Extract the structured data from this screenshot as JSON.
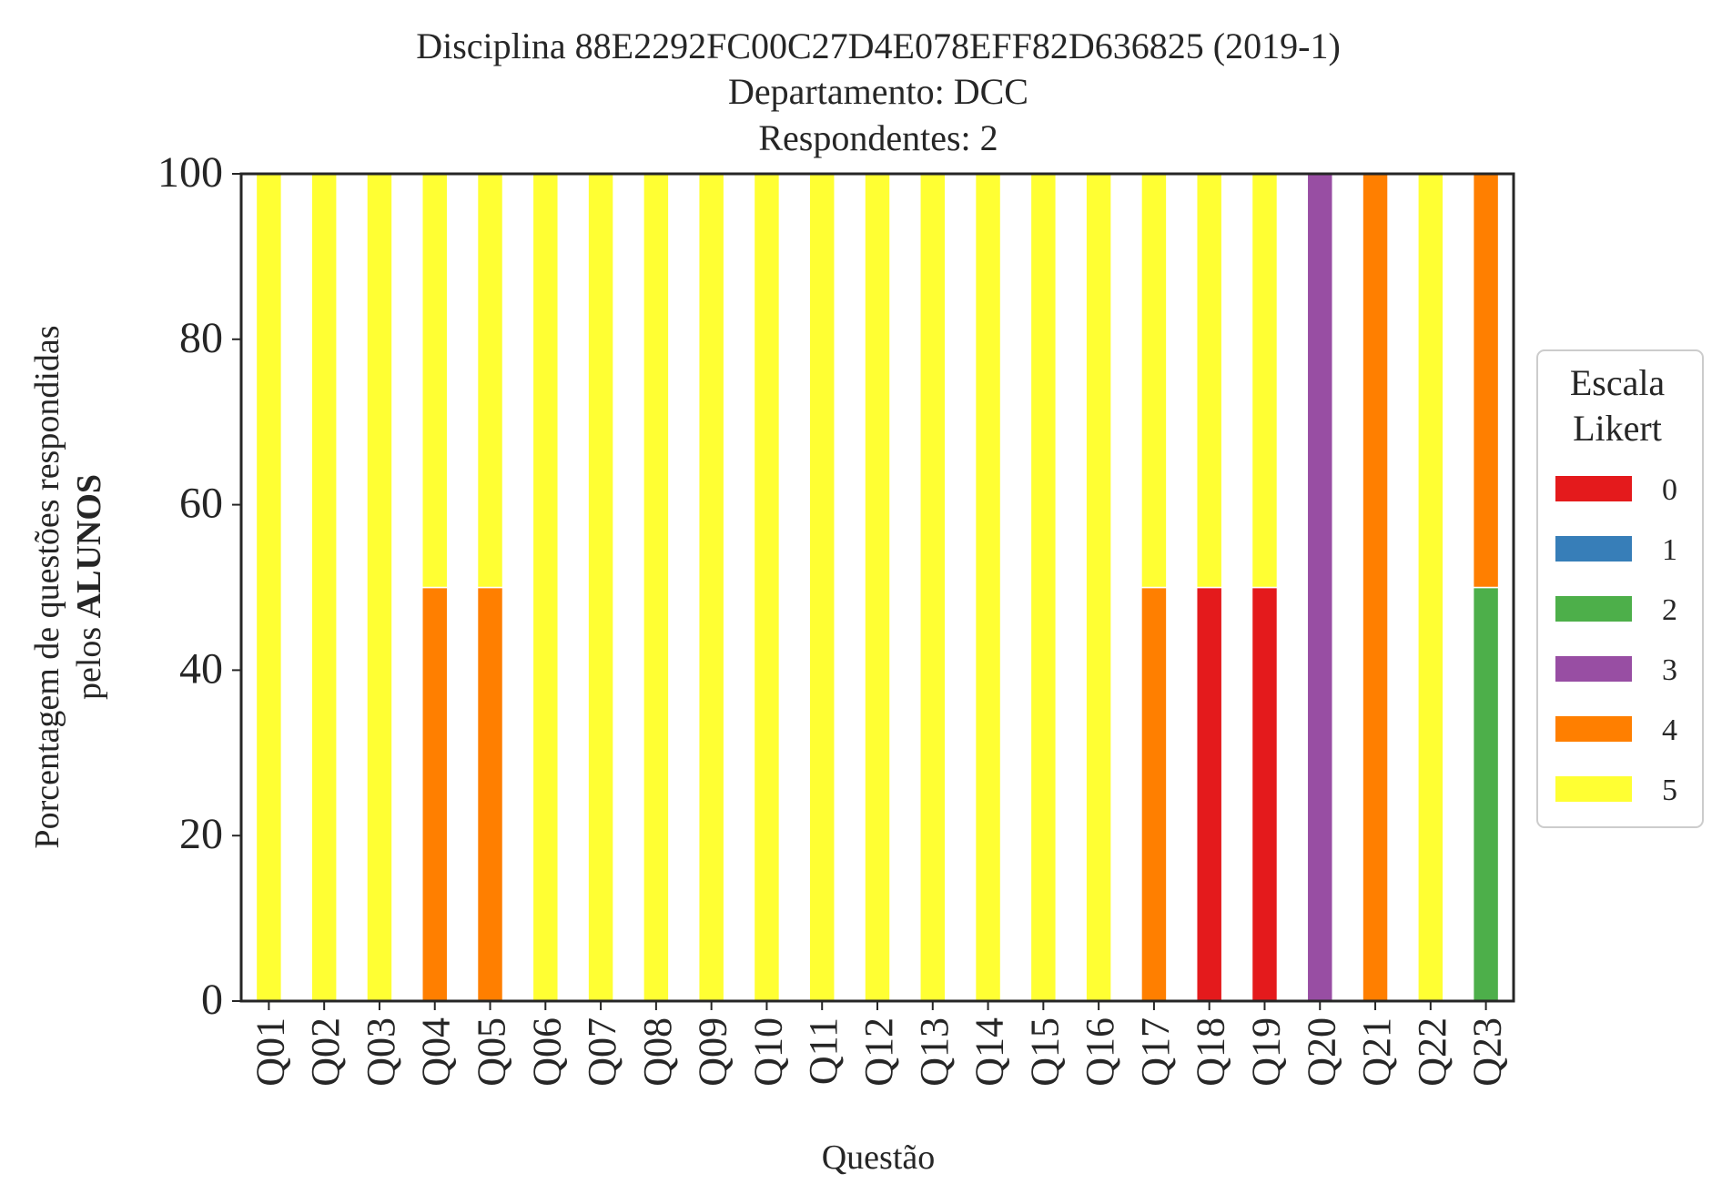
{
  "chart_data": {
    "type": "bar",
    "stacked": true,
    "title_lines": [
      "Disciplina 88E2292FC00C27D4E078EFF82D636825 (2019-1)",
      "Departamento: DCC",
      "Respondentes: 2"
    ],
    "xlabel": "Questão",
    "ylabel_line1": "Porcentagem de questões respondidas",
    "ylabel_line2_prefix": "pelos ",
    "ylabel_line2_bold": "ALUNOS",
    "ylim": [
      0,
      100
    ],
    "yticks": [
      "0",
      "20",
      "40",
      "60",
      "80",
      "100"
    ],
    "grid": false,
    "legend_position": "center-right",
    "categories": [
      "Q01",
      "Q02",
      "Q03",
      "Q04",
      "Q05",
      "Q06",
      "Q07",
      "Q08",
      "Q09",
      "Q10",
      "Q11",
      "Q12",
      "Q13",
      "Q14",
      "Q15",
      "Q16",
      "Q17",
      "Q18",
      "Q19",
      "Q20",
      "Q21",
      "Q22",
      "Q23"
    ],
    "series": [
      {
        "name": "0",
        "color": "#e41a1c",
        "values": [
          0,
          0,
          0,
          0,
          0,
          0,
          0,
          0,
          0,
          0,
          0,
          0,
          0,
          0,
          0,
          0,
          0,
          50,
          50,
          0,
          0,
          0,
          0
        ]
      },
      {
        "name": "1",
        "color": "#377eb8",
        "values": [
          0,
          0,
          0,
          0,
          0,
          0,
          0,
          0,
          0,
          0,
          0,
          0,
          0,
          0,
          0,
          0,
          0,
          0,
          0,
          0,
          0,
          0,
          0
        ]
      },
      {
        "name": "2",
        "color": "#4daf4a",
        "values": [
          0,
          0,
          0,
          0,
          0,
          0,
          0,
          0,
          0,
          0,
          0,
          0,
          0,
          0,
          0,
          0,
          0,
          0,
          0,
          0,
          0,
          0,
          50
        ]
      },
      {
        "name": "3",
        "color": "#984ea3",
        "values": [
          0,
          0,
          0,
          0,
          0,
          0,
          0,
          0,
          0,
          0,
          0,
          0,
          0,
          0,
          0,
          0,
          0,
          0,
          0,
          100,
          0,
          0,
          0
        ]
      },
      {
        "name": "4",
        "color": "#ff7f00",
        "values": [
          0,
          0,
          0,
          50,
          50,
          0,
          0,
          0,
          0,
          0,
          0,
          0,
          0,
          0,
          0,
          0,
          50,
          0,
          0,
          0,
          100,
          0,
          50
        ]
      },
      {
        "name": "5",
        "color": "#ffff33",
        "values": [
          100,
          100,
          100,
          50,
          50,
          100,
          100,
          100,
          100,
          100,
          100,
          100,
          100,
          100,
          100,
          100,
          50,
          50,
          50,
          0,
          0,
          100,
          0
        ]
      }
    ],
    "legend_title_lines": [
      "Escala",
      "Likert"
    ]
  }
}
